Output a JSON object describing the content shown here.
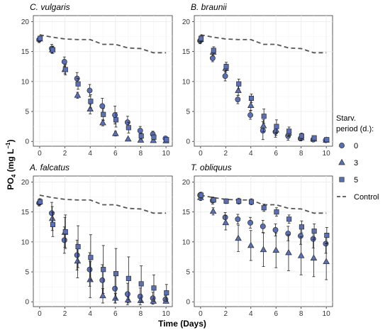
{
  "chart_data": {
    "type": "scatter",
    "xlabel_prefix": "Time (",
    "xlabel_unit": "Days",
    "xlabel_suffix": ")",
    "ylabel_main": "PO",
    "ylabel_sub": "4",
    "ylabel_unit": "(mg L",
    "ylabel_sup": "−1",
    "ylabel_close": ")",
    "xlim": [
      -0.5,
      10.5
    ],
    "ylim": [
      -0.8,
      21
    ],
    "xticks": [
      "0",
      "2",
      "4",
      "6",
      "8",
      "10"
    ],
    "yticks": [
      "0",
      "5",
      "10",
      "15",
      "20"
    ],
    "grid": true,
    "legend": {
      "title_line1": "Starv.",
      "title_line2": "period (d.):",
      "items": [
        {
          "label": "0",
          "marker": "circle"
        },
        {
          "label": "3",
          "marker": "triangle"
        },
        {
          "label": "5",
          "marker": "square"
        },
        {
          "label": "Control",
          "marker": "dash"
        }
      ],
      "placement": "right"
    },
    "colors": {
      "fill": "#5b6fb5",
      "stroke": "#2b2b2b",
      "control": "#555555",
      "grid": "#ebebeb"
    },
    "panels": [
      {
        "title": "C. vulgaris",
        "control": {
          "x": [
            0,
            1,
            2,
            3,
            4,
            5,
            6,
            7,
            8,
            9,
            10
          ],
          "y": [
            17.8,
            17.4,
            17.1,
            17.0,
            17.0,
            16.2,
            16.2,
            15.6,
            15.5,
            14.8,
            14.8
          ]
        },
        "series": [
          {
            "label": "0",
            "x": [
              0,
              1,
              2,
              3,
              4,
              5,
              6,
              7,
              8,
              9,
              10
            ],
            "y": [
              17.0,
              15.5,
              13.3,
              10.5,
              8.5,
              5.9,
              4.4,
              3.2,
              1.8,
              1.2,
              0.5
            ],
            "err": [
              0.5,
              0.7,
              0.8,
              1.0,
              1.0,
              1.3,
              1.5,
              1.0,
              0.7,
              0.5,
              0.3
            ]
          },
          {
            "label": "3",
            "x": [
              0,
              1,
              2,
              3,
              4,
              5,
              6,
              7,
              8,
              9,
              10
            ],
            "y": [
              17.1,
              15.3,
              12.0,
              7.7,
              5.4,
              3.1,
              1.3,
              0.4,
              0.2,
              0.15,
              0.1
            ],
            "err": [
              0.4,
              0.6,
              0.7,
              0.5,
              0.8,
              0.5,
              0.4,
              0.2,
              0.1,
              0.1,
              0.1
            ]
          },
          {
            "label": "5",
            "x": [
              0,
              1,
              2,
              3,
              4,
              5,
              6,
              7,
              8,
              9,
              10
            ],
            "y": [
              17.2,
              15.3,
              12.0,
              9.6,
              6.7,
              4.5,
              3.6,
              2.3,
              0.9,
              0.7,
              0.3
            ],
            "err": [
              0.4,
              0.6,
              0.9,
              0.9,
              1.1,
              1.0,
              1.2,
              0.9,
              0.5,
              0.4,
              0.2
            ]
          }
        ]
      },
      {
        "title": "B. braunii",
        "control": {
          "x": [
            0,
            1,
            2,
            3,
            4,
            5,
            6,
            7,
            8,
            9,
            10
          ],
          "y": [
            17.8,
            17.4,
            17.1,
            17.0,
            17.0,
            16.2,
            16.2,
            15.6,
            15.5,
            14.8,
            14.8
          ]
        },
        "series": [
          {
            "label": "0",
            "x": [
              0,
              1,
              2,
              3,
              4,
              5,
              6,
              7,
              8,
              9,
              10
            ],
            "y": [
              16.8,
              13.9,
              10.9,
              7.0,
              4.4,
              1.8,
              1.6,
              0.9,
              0.5,
              0.3,
              0.2
            ],
            "err": [
              0.5,
              0.6,
              0.8,
              0.7,
              0.7,
              1.5,
              0.9,
              0.7,
              0.4,
              0.3,
              0.2
            ]
          },
          {
            "label": "3",
            "x": [
              0,
              1,
              2,
              3,
              4,
              5,
              6,
              7,
              8,
              9,
              10
            ],
            "y": [
              17.0,
              14.9,
              12.2,
              8.5,
              6.0,
              2.6,
              1.9,
              1.4,
              0.6,
              0.4,
              0.2
            ],
            "err": [
              0.5,
              0.6,
              0.7,
              0.8,
              0.8,
              1.0,
              0.9,
              0.6,
              0.4,
              0.3,
              0.2
            ]
          },
          {
            "label": "5",
            "x": [
              0,
              1,
              2,
              3,
              4,
              5,
              6,
              7,
              8,
              9,
              10
            ],
            "y": [
              17.2,
              15.2,
              12.5,
              9.6,
              7.2,
              4.2,
              2.5,
              1.7,
              0.9,
              0.6,
              0.3
            ],
            "err": [
              0.5,
              0.6,
              0.7,
              0.8,
              0.7,
              1.2,
              1.1,
              0.7,
              0.5,
              0.3,
              0.2
            ]
          }
        ]
      },
      {
        "title": "A. falcatus",
        "control": {
          "x": [
            0,
            1,
            2,
            3,
            4,
            5,
            6,
            7,
            8,
            9,
            10
          ],
          "y": [
            17.8,
            17.4,
            17.1,
            17.0,
            17.0,
            16.2,
            16.2,
            15.6,
            15.5,
            14.8,
            14.8
          ]
        },
        "series": [
          {
            "label": "0",
            "x": [
              0,
              1,
              2,
              3,
              4,
              5,
              6,
              7,
              8,
              9,
              10
            ],
            "y": [
              16.5,
              14.8,
              10.3,
              7.8,
              5.4,
              3.6,
              2.2,
              1.3,
              0.9,
              0.6,
              0.4
            ],
            "err": [
              0.5,
              1.8,
              2.2,
              2.5,
              2.8,
              2.6,
              2.4,
              1.8,
              1.4,
              1.0,
              0.6
            ]
          },
          {
            "label": "3",
            "x": [
              0,
              1,
              2,
              3,
              4,
              5,
              6,
              7,
              8,
              9,
              10
            ],
            "y": [
              16.7,
              13.9,
              11.6,
              6.8,
              3.7,
              1.0,
              0.6,
              0.3,
              0.2,
              0.1,
              0.1
            ],
            "err": [
              0.5,
              2.0,
              2.5,
              2.8,
              3.0,
              1.2,
              0.8,
              0.5,
              0.3,
              0.2,
              0.1
            ]
          },
          {
            "label": "5",
            "x": [
              0,
              1,
              2,
              3,
              4,
              5,
              6,
              7,
              8,
              9,
              10
            ],
            "y": [
              16.7,
              12.9,
              11.7,
              9.2,
              7.4,
              5.4,
              4.7,
              3.9,
              3.0,
              2.3,
              1.5
            ],
            "err": [
              0.5,
              2.0,
              2.8,
              3.5,
              3.8,
              4.0,
              4.2,
              3.6,
              3.0,
              2.2,
              1.4
            ]
          }
        ]
      },
      {
        "title": "T. obliquus",
        "control": {
          "x": [
            0,
            1,
            2,
            3,
            4,
            5,
            6,
            7,
            8,
            9,
            10
          ],
          "y": [
            17.8,
            17.4,
            17.1,
            17.0,
            17.0,
            16.2,
            16.2,
            15.6,
            15.5,
            14.8,
            14.8
          ]
        },
        "series": [
          {
            "label": "0",
            "x": [
              0,
              1,
              2,
              3,
              4,
              5,
              6,
              7,
              8,
              9,
              10
            ],
            "y": [
              17.8,
              16.9,
              14.1,
              13.8,
              13.2,
              12.6,
              12.0,
              11.4,
              11.0,
              10.5,
              9.7
            ],
            "err": [
              0.4,
              0.6,
              0.8,
              0.8,
              0.9,
              1.0,
              1.0,
              1.2,
              1.4,
              1.5,
              1.6
            ]
          },
          {
            "label": "3",
            "x": [
              0,
              1,
              2,
              3,
              4,
              5,
              6,
              7,
              8,
              9,
              10
            ],
            "y": [
              17.4,
              15.1,
              13.2,
              10.6,
              9.4,
              8.7,
              8.6,
              8.2,
              7.7,
              7.3,
              6.7
            ],
            "err": [
              0.5,
              0.6,
              1.2,
              2.2,
              2.5,
              2.8,
              2.9,
              3.0,
              3.2,
              3.1,
              3.0
            ]
          },
          {
            "label": "5",
            "x": [
              0,
              1,
              2,
              3,
              4,
              5,
              6,
              7,
              8,
              9,
              10
            ],
            "y": [
              17.8,
              17.0,
              16.8,
              16.8,
              16.7,
              15.7,
              15.0,
              13.8,
              12.5,
              11.8,
              11.1
            ],
            "err": [
              0.5,
              0.4,
              0.4,
              0.5,
              0.5,
              0.6,
              0.7,
              0.7,
              1.0,
              1.2,
              1.3
            ]
          }
        ]
      }
    ]
  }
}
